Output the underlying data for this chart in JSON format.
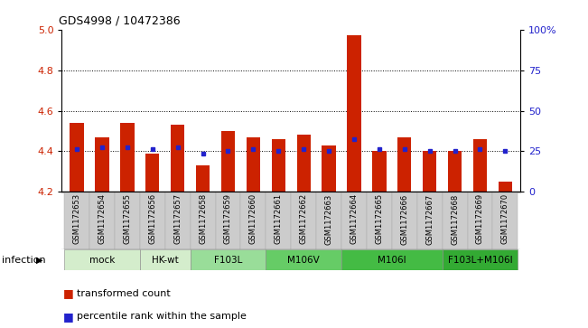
{
  "title": "GDS4998 / 10472386",
  "samples": [
    "GSM1172653",
    "GSM1172654",
    "GSM1172655",
    "GSM1172656",
    "GSM1172657",
    "GSM1172658",
    "GSM1172659",
    "GSM1172660",
    "GSM1172661",
    "GSM1172662",
    "GSM1172663",
    "GSM1172664",
    "GSM1172665",
    "GSM1172666",
    "GSM1172667",
    "GSM1172668",
    "GSM1172669",
    "GSM1172670"
  ],
  "bar_values": [
    4.54,
    4.47,
    4.54,
    4.39,
    4.53,
    4.33,
    4.5,
    4.47,
    4.46,
    4.48,
    4.43,
    4.97,
    4.4,
    4.47,
    4.4,
    4.4,
    4.46,
    4.25
  ],
  "percentile_values": [
    4.41,
    4.42,
    4.42,
    4.41,
    4.42,
    4.39,
    4.4,
    4.41,
    4.4,
    4.41,
    4.4,
    4.46,
    4.41,
    4.41,
    4.4,
    4.4,
    4.41,
    4.4
  ],
  "group_info": [
    {
      "label": "mock",
      "start": 0,
      "end": 2,
      "color": "#d4edcc"
    },
    {
      "label": "HK-wt",
      "start": 3,
      "end": 4,
      "color": "#d4edcc"
    },
    {
      "label": "F103L",
      "start": 5,
      "end": 7,
      "color": "#99dd99"
    },
    {
      "label": "M106V",
      "start": 8,
      "end": 10,
      "color": "#66cc66"
    },
    {
      "label": "M106I",
      "start": 11,
      "end": 14,
      "color": "#44bb44"
    },
    {
      "label": "F103L+M106I",
      "start": 15,
      "end": 17,
      "color": "#33aa33"
    }
  ],
  "bar_color": "#cc2200",
  "blue_color": "#2222cc",
  "ylim": [
    4.2,
    5.0
  ],
  "yticks_left": [
    4.2,
    4.4,
    4.6,
    4.8,
    5.0
  ],
  "yticks_right": [
    0,
    25,
    50,
    75,
    100
  ],
  "ylabel_left_color": "#cc2200",
  "ylabel_right_color": "#2222cc",
  "legend_bar": "transformed count",
  "legend_dot": "percentile rank within the sample",
  "bar_width": 0.55,
  "sample_box_color": "#cccccc",
  "grid_lines": [
    4.4,
    4.6,
    4.8
  ]
}
